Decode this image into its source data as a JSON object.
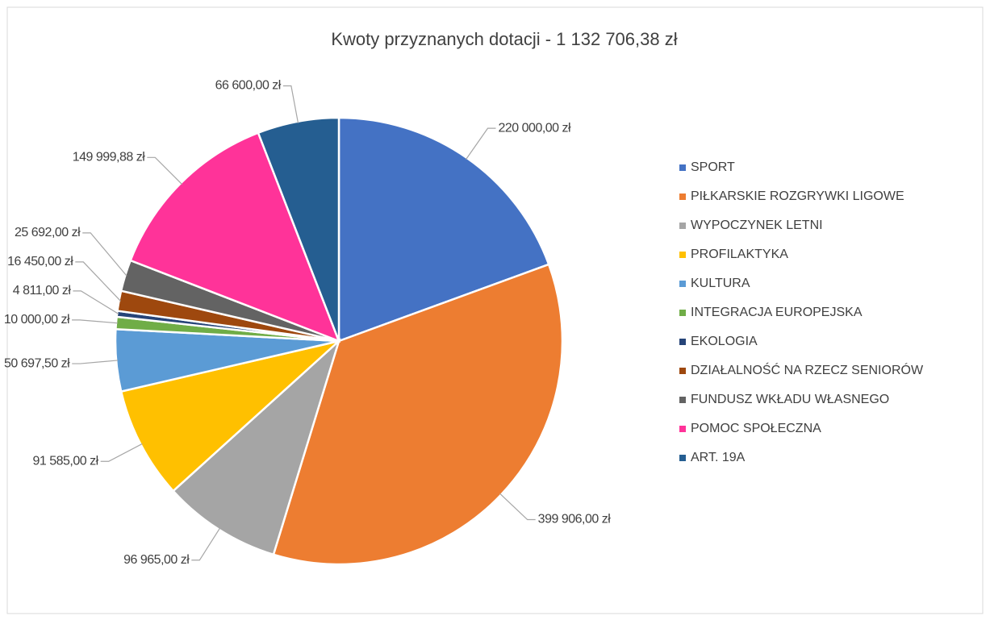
{
  "chart_data": {
    "type": "pie",
    "title": "Kwoty przyznanych  dotacji - 1 132 706,38 zł",
    "categories": [
      "SPORT",
      "PIŁKARSKIE ROZGRYWKI LIGOWE",
      "WYPOCZYNEK LETNI",
      "PROFILAKTYKA",
      "KULTURA",
      "INTEGRACJA EUROPEJSKA",
      "EKOLOGIA",
      "DZIAŁALNOŚĆ NA RZECZ SENIORÓW",
      "FUNDUSZ WKŁADU WŁASNEGO",
      "POMOC SPOŁECZNA",
      "ART. 19A"
    ],
    "values": [
      220000,
      399906,
      96965,
      91585,
      50697.5,
      10000,
      4811,
      16450,
      25692,
      149999.88,
      66600
    ],
    "value_labels": [
      "220 000,00 zł",
      "399 906,00 zł",
      "96 965,00 zł",
      "91 585,00 zł",
      "50 697,50 zł",
      "10 000,00 zł",
      "4 811,00 zł",
      "16 450,00 zł",
      "25 692,00 zł",
      "149 999,88 zł",
      "66 600,00 zł"
    ],
    "colors": [
      "#4472c4",
      "#ed7d31",
      "#a5a5a5",
      "#ffc000",
      "#5b9bd5",
      "#70ad47",
      "#264478",
      "#9e480e",
      "#636363",
      "#ff3399",
      "#255e91"
    ],
    "legend": "right"
  }
}
